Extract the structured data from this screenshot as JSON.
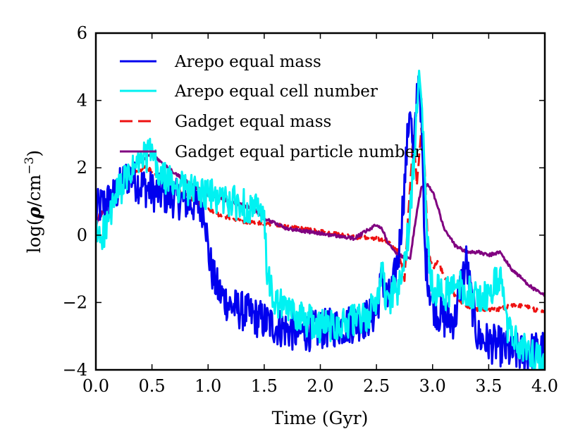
{
  "chart_data": {
    "type": "line",
    "title": "",
    "xlabel": "Time (Gyr)",
    "ylabel_main": "log(",
    "ylabel_rho": "ρ",
    "ylabel_unit": "/cm",
    "ylabel_exp": "−3",
    "ylabel_close": ")",
    "xlim": [
      0.0,
      4.0
    ],
    "ylim": [
      -4,
      6
    ],
    "x_ticks": [
      0.0,
      0.5,
      1.0,
      1.5,
      2.0,
      2.5,
      3.0,
      3.5,
      4.0
    ],
    "x_tick_labels": [
      "0.0",
      "0.5",
      "1.0",
      "1.5",
      "2.0",
      "2.5",
      "3.0",
      "3.5",
      "4.0"
    ],
    "y_ticks": [
      -4,
      -2,
      0,
      2,
      4,
      6
    ],
    "y_tick_labels": [
      "−4",
      "−2",
      "0",
      "2",
      "4",
      "6"
    ],
    "grid": false,
    "legend_position": "upper-left",
    "series": [
      {
        "name": "Arepo equal mass",
        "color": "#0000ee",
        "dash": "solid",
        "noise": 0.6,
        "x": [
          0.0,
          0.05,
          0.15,
          0.25,
          0.3,
          0.35,
          0.5,
          0.7,
          0.9,
          0.97,
          1.0,
          1.05,
          1.1,
          1.2,
          1.4,
          1.6,
          1.8,
          2.0,
          2.2,
          2.4,
          2.5,
          2.55,
          2.6,
          2.65,
          2.7,
          2.75,
          2.8,
          2.83,
          2.86,
          2.88,
          2.9,
          2.93,
          2.97,
          3.0,
          3.05,
          3.1,
          3.2,
          3.25,
          3.3,
          3.35,
          3.4,
          3.5,
          3.6,
          3.7,
          3.8,
          4.0
        ],
        "y": [
          0.7,
          0.9,
          1.1,
          1.6,
          1.8,
          1.6,
          1.3,
          1.1,
          0.9,
          0.8,
          -0.5,
          -1.3,
          -1.7,
          -2.1,
          -2.4,
          -2.7,
          -2.9,
          -2.8,
          -2.7,
          -2.5,
          -2.3,
          -1.2,
          -2.0,
          -1.5,
          -0.5,
          1.5,
          4.0,
          2.0,
          4.2,
          4.8,
          3.5,
          -0.5,
          -1.5,
          -2.0,
          -2.3,
          -2.5,
          -2.5,
          -1.5,
          -0.8,
          -2.0,
          -3.0,
          -3.2,
          -3.3,
          -3.5,
          -3.5,
          -3.4
        ]
      },
      {
        "name": "Arepo equal cell number",
        "color": "#00f2f2",
        "dash": "solid",
        "noise": 0.5,
        "x": [
          0.0,
          0.05,
          0.1,
          0.15,
          0.2,
          0.3,
          0.4,
          0.5,
          0.55,
          0.7,
          0.9,
          1.1,
          1.3,
          1.45,
          1.5,
          1.52,
          1.55,
          1.6,
          1.8,
          2.0,
          2.2,
          2.4,
          2.5,
          2.55,
          2.6,
          2.65,
          2.7,
          2.75,
          2.8,
          2.85,
          2.88,
          2.9,
          2.93,
          2.96,
          3.0,
          3.1,
          3.2,
          3.3,
          3.4,
          3.5,
          3.55,
          3.6,
          3.65,
          3.7,
          3.8,
          4.0
        ],
        "y": [
          0.0,
          0.0,
          0.3,
          0.8,
          1.3,
          1.8,
          2.2,
          2.5,
          1.8,
          1.5,
          1.3,
          1.1,
          0.9,
          0.7,
          0.4,
          -0.8,
          -1.6,
          -2.0,
          -2.4,
          -2.7,
          -2.6,
          -2.5,
          -2.0,
          -1.0,
          -2.2,
          -1.7,
          -1.6,
          -0.8,
          0.5,
          3.0,
          5.3,
          4.5,
          2.0,
          -0.5,
          -1.5,
          -1.8,
          -1.5,
          -1.6,
          -1.9,
          -1.8,
          -1.5,
          -1.2,
          -2.5,
          -3.0,
          -3.4,
          -3.7
        ]
      },
      {
        "name": "Gadget equal mass",
        "color": "#ee1111",
        "dash": "dashed",
        "noise": 0.06,
        "x": [
          0.0,
          0.05,
          0.15,
          0.25,
          0.35,
          0.45,
          0.55,
          0.7,
          0.9,
          1.1,
          1.3,
          1.5,
          1.7,
          1.9,
          2.1,
          2.3,
          2.5,
          2.6,
          2.7,
          2.75,
          2.8,
          2.83,
          2.86,
          2.9,
          2.93,
          2.96,
          3.0,
          3.05,
          3.1,
          3.2,
          3.3,
          3.4,
          3.5,
          3.6,
          3.7,
          3.8,
          3.9,
          4.0
        ],
        "y": [
          0.4,
          0.7,
          1.1,
          1.6,
          1.9,
          2.0,
          1.8,
          1.4,
          1.0,
          0.6,
          0.4,
          0.35,
          0.25,
          0.15,
          0.05,
          -0.05,
          -0.1,
          -0.2,
          -0.5,
          -1.3,
          1.5,
          3.0,
          1.5,
          3.2,
          2.0,
          -0.5,
          -1.0,
          -0.8,
          -1.2,
          -1.8,
          -2.1,
          -2.2,
          -2.2,
          -2.2,
          -2.1,
          -2.1,
          -2.2,
          -2.3
        ]
      },
      {
        "name": "Gadget equal particle number",
        "color": "#800080",
        "dash": "solid",
        "noise": 0.05,
        "x": [
          0.0,
          0.05,
          0.15,
          0.25,
          0.35,
          0.45,
          0.5,
          0.6,
          0.8,
          1.0,
          1.2,
          1.4,
          1.5,
          1.7,
          1.9,
          2.1,
          2.3,
          2.5,
          2.55,
          2.6,
          2.7,
          2.8,
          2.85,
          2.9,
          2.95,
          3.0,
          3.05,
          3.1,
          3.2,
          3.3,
          3.4,
          3.5,
          3.6,
          3.7,
          3.8,
          3.9,
          4.0
        ],
        "y": [
          0.3,
          0.6,
          1.1,
          1.7,
          2.1,
          2.3,
          2.4,
          2.1,
          1.6,
          1.2,
          1.0,
          0.8,
          0.5,
          0.2,
          0.1,
          0.0,
          -0.1,
          0.3,
          0.2,
          -0.2,
          -0.6,
          -0.7,
          0.5,
          1.4,
          1.5,
          1.3,
          0.8,
          0.2,
          -0.3,
          -0.5,
          -0.5,
          -0.6,
          -0.5,
          -1.0,
          -1.3,
          -1.6,
          -1.8
        ]
      }
    ]
  }
}
